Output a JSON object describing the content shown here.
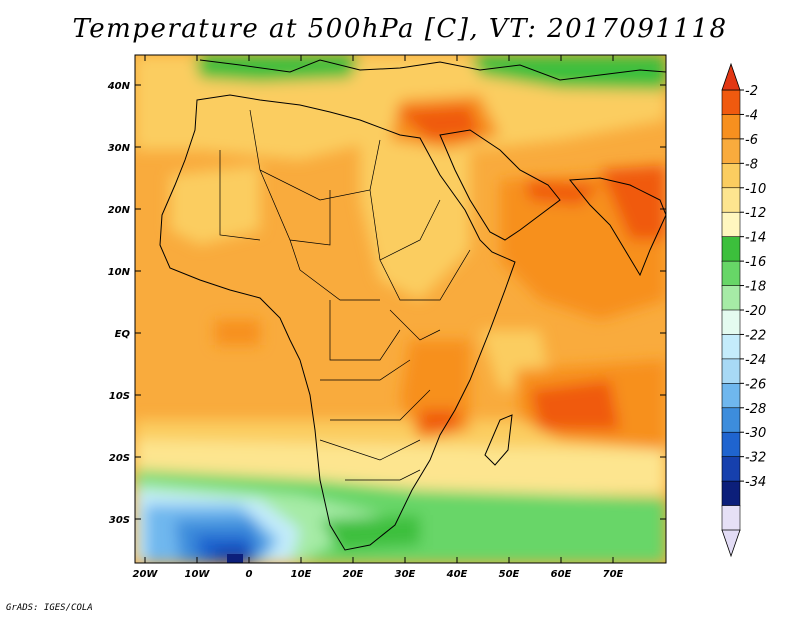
{
  "map": {
    "title": "Temperature at 500hPa [C], VT: 2017091118",
    "credit": "GrADS: IGES/COLA",
    "lat_ticks": [
      "40N",
      "30N",
      "20N",
      "10N",
      "EQ",
      "10S",
      "20S",
      "30S"
    ],
    "lon_ticks": [
      "20W",
      "10W",
      "0",
      "10E",
      "20E",
      "30E",
      "40E",
      "50E",
      "60E",
      "70E"
    ],
    "colorbar": {
      "labels": [
        "-2",
        "-4",
        "-6",
        "-8",
        "-10",
        "-12",
        "-14",
        "-16",
        "-18",
        "-20",
        "-22",
        "-24",
        "-26",
        "-28",
        "-30",
        "-32",
        "-34"
      ],
      "colors": [
        "#f05a0f",
        "#f7901f",
        "#f9ab3d",
        "#fbcd60",
        "#fde58f",
        "#fff7bf",
        "#3cbf3c",
        "#67d667",
        "#a6eba6",
        "#e4fbf0",
        "#c4ecfb",
        "#a8d9f5",
        "#6fb7ee",
        "#3d8ddc",
        "#1f64cf",
        "#1640ad",
        "#0c1f7a",
        "#e6e0f6"
      ],
      "top_arrow_color": "#e23714",
      "bottom_arrow_color": "#e2dcf5"
    }
  }
}
